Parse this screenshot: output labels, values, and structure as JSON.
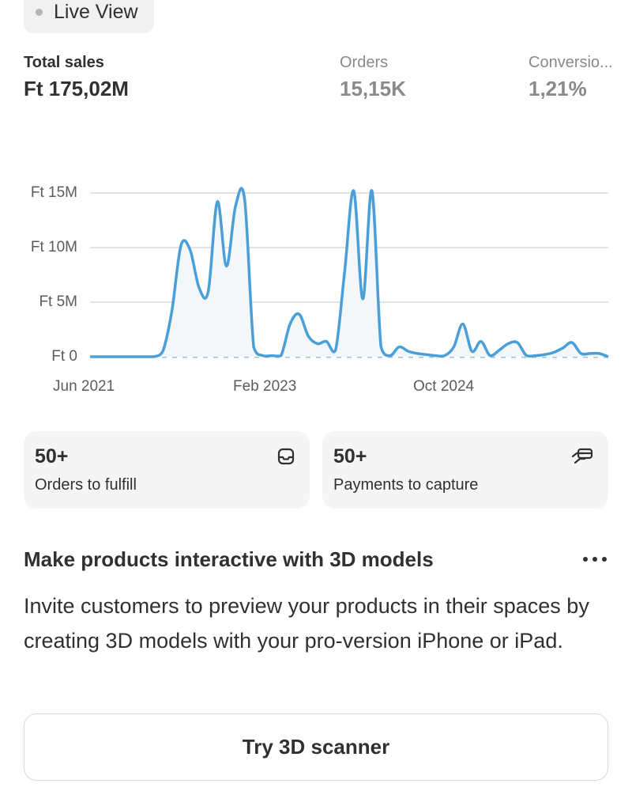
{
  "live_view": {
    "label": "Live View"
  },
  "metrics": [
    {
      "label": "Total sales",
      "value": "Ft 175,02M"
    },
    {
      "label": "Orders",
      "value": "15,15K"
    },
    {
      "label": "Conversio...",
      "value": "1,21%"
    }
  ],
  "chart_data": {
    "type": "area",
    "title": "",
    "xlabel": "",
    "ylabel": "",
    "y_ticks": [
      "Ft 0",
      "Ft 5M",
      "Ft 10M",
      "Ft 15M"
    ],
    "x_ticks": [
      "Jun 2021",
      "Feb 2023",
      "Oct 2024"
    ],
    "ylim": [
      0,
      15
    ],
    "y_unit": "Ft M",
    "grid": true,
    "line_color": "#4a9fd8",
    "baseline": "dashed",
    "series": [
      {
        "points": [
          [
            "2021-06",
            0
          ],
          [
            "2021-07",
            0
          ],
          [
            "2021-08",
            0
          ],
          [
            "2021-09",
            0
          ],
          [
            "2021-10",
            0
          ],
          [
            "2021-11",
            0
          ],
          [
            "2021-12",
            0
          ],
          [
            "2022-01",
            0
          ],
          [
            "2022-02",
            0.5
          ],
          [
            "2022-03",
            4.2
          ],
          [
            "2022-04",
            10.2
          ],
          [
            "2022-05",
            9.8
          ],
          [
            "2022-06",
            6.3
          ],
          [
            "2022-07",
            6.0
          ],
          [
            "2022-08",
            14.2
          ],
          [
            "2022-09",
            8.3
          ],
          [
            "2022-10",
            13.8
          ],
          [
            "2022-11",
            14.4
          ],
          [
            "2022-12",
            0.9
          ],
          [
            "2023-01",
            0.1
          ],
          [
            "2023-02",
            0.1
          ],
          [
            "2023-03",
            0.1
          ],
          [
            "2023-04",
            3.0
          ],
          [
            "2023-05",
            3.9
          ],
          [
            "2023-06",
            1.9
          ],
          [
            "2023-07",
            1.2
          ],
          [
            "2023-08",
            1.4
          ],
          [
            "2023-09",
            0.6
          ],
          [
            "2023-10",
            7.8
          ],
          [
            "2023-11",
            15.2
          ],
          [
            "2023-12",
            5.3
          ],
          [
            "2024-01",
            15.2
          ],
          [
            "2024-02",
            0.9
          ],
          [
            "2024-03",
            0.1
          ],
          [
            "2024-04",
            0.9
          ],
          [
            "2024-05",
            0.5
          ],
          [
            "2024-06",
            0.3
          ],
          [
            "2024-07",
            0.2
          ],
          [
            "2024-08",
            0.1
          ],
          [
            "2024-09",
            0.1
          ],
          [
            "2024-10",
            0.9
          ],
          [
            "2024-11",
            3.0
          ],
          [
            "2024-12",
            0.5
          ],
          [
            "2025-01",
            1.4
          ],
          [
            "2025-02",
            0.1
          ],
          [
            "2025-03",
            0.6
          ],
          [
            "2025-04",
            1.2
          ],
          [
            "2025-05",
            1.3
          ],
          [
            "2025-06",
            0.1
          ],
          [
            "2025-07",
            0.1
          ],
          [
            "2025-08",
            0.2
          ],
          [
            "2025-09",
            0.4
          ],
          [
            "2025-10",
            0.8
          ],
          [
            "2025-11",
            1.3
          ],
          [
            "2025-12",
            0.3
          ],
          [
            "2026-01",
            0.3
          ],
          [
            "2026-02",
            0.3
          ],
          [
            "2026-03",
            0
          ]
        ]
      }
    ]
  },
  "cards": [
    {
      "value": "50+",
      "label": "Orders to fulfill",
      "icon": "inbox-icon"
    },
    {
      "value": "50+",
      "label": "Payments to capture",
      "icon": "hand-card-icon"
    }
  ],
  "promo": {
    "title": "Make products interactive with 3D models",
    "body": "Invite customers to preview your products in their spaces by creating 3D models with your pro-version iPhone or iPad.",
    "button": "Try 3D scanner",
    "menu_icon": "more-horizontal-icon"
  }
}
